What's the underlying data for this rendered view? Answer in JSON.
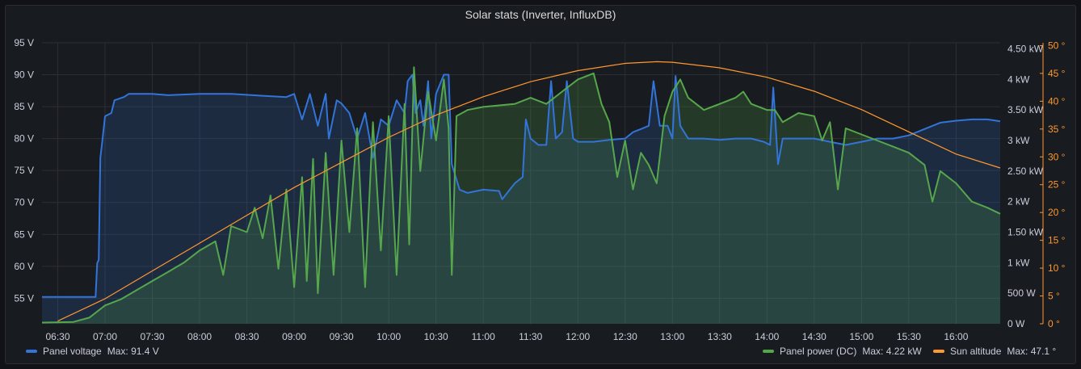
{
  "panel": {
    "title": "Solar stats (Inverter, InfluxDB)"
  },
  "colors": {
    "voltage": "#3274d9",
    "power": "#56a64b",
    "sun": "#ff9830",
    "grid": "#2c2f35",
    "text": "#ccccdc"
  },
  "chart_data": {
    "type": "line",
    "title": "Solar stats (Inverter, InfluxDB)",
    "x": {
      "ticks": [
        "06:30",
        "07:00",
        "07:30",
        "08:00",
        "08:30",
        "09:00",
        "09:30",
        "10:00",
        "10:30",
        "11:00",
        "11:30",
        "12:00",
        "12:30",
        "13:00",
        "13:30",
        "14:00",
        "14:30",
        "15:00",
        "15:30",
        "16:00"
      ],
      "range": [
        "06:20",
        "16:28"
      ]
    },
    "y_left": {
      "ticks": [
        "55 V",
        "60 V",
        "65 V",
        "70 V",
        "75 V",
        "80 V",
        "85 V",
        "90 V",
        "95 V"
      ],
      "range": [
        51,
        95
      ]
    },
    "y_right_power": {
      "ticks": [
        "0 W",
        "500 W",
        "1 kW",
        "1.50 kW",
        "2 kW",
        "2.50 kW",
        "3 kW",
        "3.50 kW",
        "4 kW",
        "4.50 kW"
      ],
      "range": [
        0,
        4.6
      ]
    },
    "y_right_sun": {
      "ticks": [
        "0 °",
        "5 °",
        "10 °",
        "15 °",
        "20 °",
        "25 °",
        "30 °",
        "35 °",
        "40 °",
        "45 °",
        "50 °"
      ],
      "range": [
        0,
        50.5
      ]
    },
    "series": [
      {
        "name": "Panel voltage",
        "axis": "left",
        "stat": "Max: 91.4 V",
        "points": [
          [
            "06:20",
            55.2
          ],
          [
            "06:54",
            55.2
          ],
          [
            "06:55",
            60.5
          ],
          [
            "06:56",
            61
          ],
          [
            "06:57",
            77
          ],
          [
            "06:58",
            79
          ],
          [
            "07:00",
            83.5
          ],
          [
            "07:04",
            84
          ],
          [
            "07:06",
            86
          ],
          [
            "07:12",
            86.5
          ],
          [
            "07:15",
            87
          ],
          [
            "07:30",
            87
          ],
          [
            "07:40",
            86.8
          ],
          [
            "08:00",
            87
          ],
          [
            "08:20",
            87
          ],
          [
            "08:40",
            86.7
          ],
          [
            "08:55",
            86.5
          ],
          [
            "09:00",
            87
          ],
          [
            "09:05",
            83
          ],
          [
            "09:10",
            87
          ],
          [
            "09:15",
            82
          ],
          [
            "09:20",
            87
          ],
          [
            "09:22",
            80
          ],
          [
            "09:27",
            86
          ],
          [
            "09:30",
            85.5
          ],
          [
            "09:35",
            84
          ],
          [
            "09:40",
            80
          ],
          [
            "09:45",
            84
          ],
          [
            "09:50",
            77
          ],
          [
            "09:55",
            83
          ],
          [
            "10:00",
            82
          ],
          [
            "10:05",
            86
          ],
          [
            "10:10",
            84
          ],
          [
            "10:12",
            89
          ],
          [
            "10:15",
            90
          ],
          [
            "10:17",
            84
          ],
          [
            "10:20",
            86
          ],
          [
            "10:22",
            82
          ],
          [
            "10:25",
            89
          ],
          [
            "10:27",
            80
          ],
          [
            "10:30",
            87
          ],
          [
            "10:35",
            90
          ],
          [
            "10:38",
            90
          ],
          [
            "10:40",
            76
          ],
          [
            "10:45",
            72
          ],
          [
            "10:50",
            71.5
          ],
          [
            "11:00",
            72
          ],
          [
            "11:10",
            71.8
          ],
          [
            "11:12",
            70.5
          ],
          [
            "11:20",
            73
          ],
          [
            "11:25",
            74
          ],
          [
            "11:27",
            83
          ],
          [
            "11:30",
            80
          ],
          [
            "11:35",
            79
          ],
          [
            "11:40",
            79
          ],
          [
            "11:43",
            89
          ],
          [
            "11:46",
            80
          ],
          [
            "11:50",
            81
          ],
          [
            "11:53",
            89
          ],
          [
            "11:57",
            80
          ],
          [
            "12:00",
            79.5
          ],
          [
            "12:10",
            79.5
          ],
          [
            "12:20",
            79.8
          ],
          [
            "12:30",
            80
          ],
          [
            "12:35",
            81
          ],
          [
            "12:40",
            81.5
          ],
          [
            "12:45",
            82
          ],
          [
            "12:48",
            89
          ],
          [
            "12:52",
            82
          ],
          [
            "12:57",
            82
          ],
          [
            "13:00",
            80
          ],
          [
            "13:02",
            89.8
          ],
          [
            "13:05",
            82
          ],
          [
            "13:10",
            80
          ],
          [
            "13:20",
            80
          ],
          [
            "13:30",
            79.8
          ],
          [
            "13:40",
            80
          ],
          [
            "13:50",
            80
          ],
          [
            "13:58",
            79.5
          ],
          [
            "14:02",
            79
          ],
          [
            "14:04",
            88
          ],
          [
            "14:07",
            76
          ],
          [
            "14:10",
            80
          ],
          [
            "14:20",
            80
          ],
          [
            "14:30",
            80
          ],
          [
            "14:40",
            79.5
          ],
          [
            "14:50",
            79
          ],
          [
            "15:00",
            79.5
          ],
          [
            "15:10",
            80
          ],
          [
            "15:20",
            80
          ],
          [
            "15:30",
            80.5
          ],
          [
            "15:40",
            81.5
          ],
          [
            "15:50",
            82.5
          ],
          [
            "16:00",
            82.8
          ],
          [
            "16:10",
            83
          ],
          [
            "16:20",
            83
          ],
          [
            "16:28",
            82.7
          ]
        ]
      },
      {
        "name": "Panel power (DC)",
        "axis": "right-power",
        "stat": "Max: 4.22 kW",
        "points": [
          [
            "06:20",
            0.02
          ],
          [
            "06:40",
            0.03
          ],
          [
            "06:50",
            0.1
          ],
          [
            "07:00",
            0.3
          ],
          [
            "07:10",
            0.4
          ],
          [
            "07:20",
            0.55
          ],
          [
            "07:30",
            0.7
          ],
          [
            "07:40",
            0.85
          ],
          [
            "07:50",
            1.0
          ],
          [
            "08:00",
            1.2
          ],
          [
            "08:10",
            1.35
          ],
          [
            "08:15",
            0.8
          ],
          [
            "08:20",
            1.6
          ],
          [
            "08:30",
            1.5
          ],
          [
            "08:35",
            1.9
          ],
          [
            "08:40",
            1.4
          ],
          [
            "08:45",
            2.1
          ],
          [
            "08:50",
            0.9
          ],
          [
            "08:55",
            2.2
          ],
          [
            "09:00",
            0.6
          ],
          [
            "09:05",
            2.4
          ],
          [
            "09:08",
            0.7
          ],
          [
            "09:12",
            2.7
          ],
          [
            "09:15",
            0.5
          ],
          [
            "09:20",
            2.8
          ],
          [
            "09:25",
            0.8
          ],
          [
            "09:30",
            3.0
          ],
          [
            "09:35",
            1.5
          ],
          [
            "09:40",
            3.2
          ],
          [
            "09:45",
            0.6
          ],
          [
            "09:50",
            3.3
          ],
          [
            "09:55",
            1.2
          ],
          [
            "10:00",
            3.4
          ],
          [
            "10:05",
            0.8
          ],
          [
            "10:10",
            3.6
          ],
          [
            "10:13",
            1.3
          ],
          [
            "10:16",
            4.2
          ],
          [
            "10:20",
            2.5
          ],
          [
            "10:25",
            3.8
          ],
          [
            "10:30",
            3.0
          ],
          [
            "10:35",
            4.0
          ],
          [
            "10:38",
            3.2
          ],
          [
            "10:40",
            0.8
          ],
          [
            "10:43",
            3.4
          ],
          [
            "10:50",
            3.5
          ],
          [
            "11:00",
            3.55
          ],
          [
            "11:20",
            3.6
          ],
          [
            "11:30",
            3.7
          ],
          [
            "11:40",
            3.6
          ],
          [
            "11:50",
            3.8
          ],
          [
            "12:00",
            4.0
          ],
          [
            "12:10",
            4.1
          ],
          [
            "12:15",
            3.6
          ],
          [
            "12:20",
            3.3
          ],
          [
            "12:25",
            2.4
          ],
          [
            "12:30",
            3.0
          ],
          [
            "12:35",
            2.2
          ],
          [
            "12:40",
            2.8
          ],
          [
            "12:45",
            2.6
          ],
          [
            "12:50",
            2.3
          ],
          [
            "12:55",
            3.4
          ],
          [
            "13:00",
            3.8
          ],
          [
            "13:05",
            4.0
          ],
          [
            "13:10",
            3.7
          ],
          [
            "13:20",
            3.5
          ],
          [
            "13:30",
            3.6
          ],
          [
            "13:40",
            3.7
          ],
          [
            "13:45",
            3.8
          ],
          [
            "13:50",
            3.6
          ],
          [
            "14:00",
            3.5
          ],
          [
            "14:05",
            3.5
          ],
          [
            "14:10",
            3.3
          ],
          [
            "14:20",
            3.45
          ],
          [
            "14:30",
            3.4
          ],
          [
            "14:35",
            3.0
          ],
          [
            "14:40",
            3.3
          ],
          [
            "14:45",
            2.2
          ],
          [
            "14:50",
            3.2
          ],
          [
            "15:00",
            3.1
          ],
          [
            "15:10",
            3.0
          ],
          [
            "15:20",
            2.9
          ],
          [
            "15:30",
            2.8
          ],
          [
            "15:40",
            2.6
          ],
          [
            "15:45",
            2.0
          ],
          [
            "15:50",
            2.5
          ],
          [
            "16:00",
            2.3
          ],
          [
            "16:10",
            2.0
          ],
          [
            "16:20",
            1.9
          ],
          [
            "16:28",
            1.8
          ]
        ]
      },
      {
        "name": "Sun altitude",
        "axis": "right-sun",
        "stat": "Max: 47.1 °",
        "points": [
          [
            "06:30",
            0.5
          ],
          [
            "07:00",
            4.5
          ],
          [
            "07:30",
            9.5
          ],
          [
            "08:00",
            14.5
          ],
          [
            "08:30",
            19.5
          ],
          [
            "09:00",
            24.5
          ],
          [
            "09:30",
            29
          ],
          [
            "10:00",
            33.5
          ],
          [
            "10:30",
            37.5
          ],
          [
            "11:00",
            40.8
          ],
          [
            "11:30",
            43.5
          ],
          [
            "12:00",
            45.5
          ],
          [
            "12:30",
            46.8
          ],
          [
            "12:50",
            47.1
          ],
          [
            "13:00",
            47
          ],
          [
            "13:30",
            46
          ],
          [
            "14:00",
            44.3
          ],
          [
            "14:30",
            41.8
          ],
          [
            "15:00",
            38.5
          ],
          [
            "15:30",
            34.5
          ],
          [
            "16:00",
            30.5
          ],
          [
            "16:28",
            28
          ]
        ]
      }
    ],
    "legend": "bottom",
    "grid": true
  },
  "legend": {
    "voltage": {
      "label": "Panel voltage",
      "stat": "Max: 91.4 V"
    },
    "power": {
      "label": "Panel power (DC)",
      "stat": "Max: 4.22 kW"
    },
    "sun": {
      "label": "Sun altitude",
      "stat": "Max: 47.1 °"
    }
  }
}
